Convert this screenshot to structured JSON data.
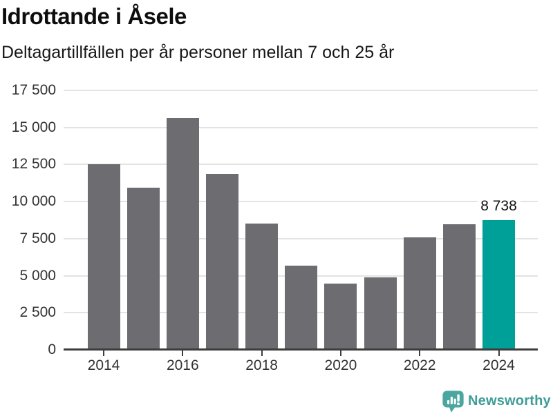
{
  "header": {
    "title": "Idrottande i Åsele",
    "subtitle": "Deltagartillfällen per år personer mellan 7 och 25 år"
  },
  "chart_data": {
    "type": "bar",
    "title": "Idrottande i Åsele",
    "subtitle": "Deltagartillfällen per år personer mellan 7 och 25 år",
    "categories": [
      2014,
      2015,
      2016,
      2017,
      2018,
      2019,
      2020,
      2021,
      2022,
      2023,
      2024
    ],
    "values": [
      12500,
      10950,
      15650,
      11850,
      8500,
      5700,
      4450,
      4900,
      7570,
      8450,
      8738
    ],
    "xlabel": "",
    "ylabel": "",
    "ylim": [
      0,
      17500
    ],
    "grid": "horizontal",
    "legend": "none",
    "y_ticks": [
      {
        "value": 17500,
        "label": "17 500"
      },
      {
        "value": 15000,
        "label": "15 000"
      },
      {
        "value": 12500,
        "label": "12 500"
      },
      {
        "value": 10000,
        "label": "10 000"
      },
      {
        "value": 7500,
        "label": "7 500"
      },
      {
        "value": 5000,
        "label": "5 000"
      },
      {
        "value": 2500,
        "label": "2 500"
      },
      {
        "value": 0,
        "label": "0"
      }
    ],
    "x_ticks": [
      {
        "index": 0,
        "label": "2014"
      },
      {
        "index": 2,
        "label": "2016"
      },
      {
        "index": 4,
        "label": "2018"
      },
      {
        "index": 6,
        "label": "2020"
      },
      {
        "index": 8,
        "label": "2022"
      },
      {
        "index": 10,
        "label": "2024"
      }
    ],
    "highlight": {
      "index": 10,
      "label": "8 738"
    },
    "colors": {
      "bar": "#6c6c71",
      "highlight": "#00a099",
      "grid": "#e3e3e3",
      "axis": "#3d3d3d",
      "tick_text": "#333333"
    }
  },
  "footer": {
    "brand": "Newsworthy",
    "brand_color": "#3f9d97",
    "icon": "newsworthy-chart-speech-bubble-icon",
    "icon_color": "#4ba6a0"
  }
}
